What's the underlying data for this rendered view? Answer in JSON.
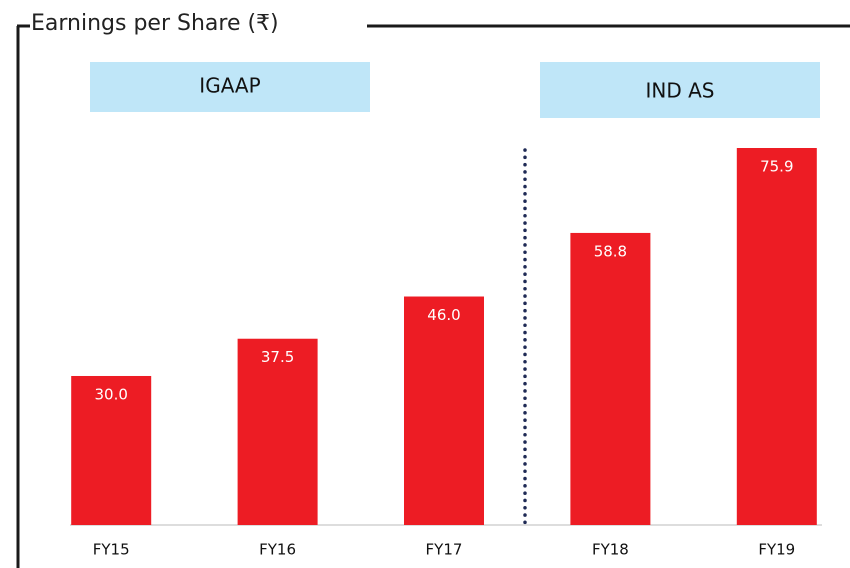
{
  "chart_data": {
    "type": "bar",
    "title": "Earnings per Share (₹)",
    "categories": [
      "FY15",
      "FY16",
      "FY17",
      "FY18",
      "FY19"
    ],
    "values": [
      30.0,
      37.5,
      46.0,
      58.8,
      75.9
    ],
    "value_labels": [
      "30.0",
      "37.5",
      "46.0",
      "58.8",
      "75.9"
    ],
    "color": "#ed1c24",
    "annotations": [
      "IGAAP",
      "IND AS"
    ]
  }
}
